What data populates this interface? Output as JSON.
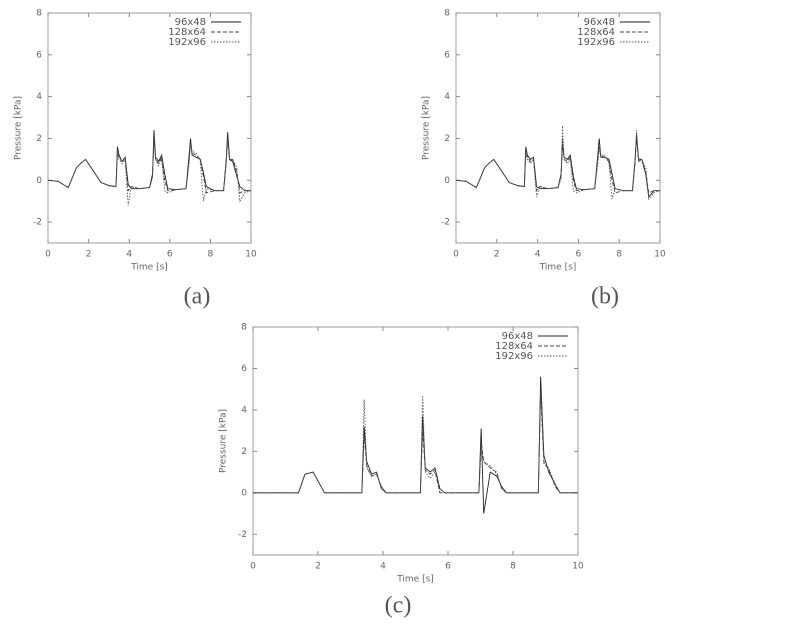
{
  "chart_data": [
    {
      "type": "line",
      "caption": "(a)",
      "x_label": "Time [s]",
      "y_label": "Pressure [kPa]",
      "x": [
        0,
        0.5,
        1.0,
        1.4,
        1.6,
        1.85,
        2.2,
        2.6,
        3.0,
        3.35,
        3.42,
        3.5,
        3.65,
        3.8,
        3.95,
        4.1,
        4.5,
        5.0,
        5.15,
        5.22,
        5.3,
        5.45,
        5.6,
        5.75,
        5.9,
        6.3,
        6.8,
        6.95,
        7.02,
        7.1,
        7.3,
        7.5,
        7.65,
        7.8,
        8.2,
        8.65,
        8.78,
        8.85,
        8.95,
        9.1,
        9.3,
        9.45,
        9.7,
        10
      ],
      "series": [
        {
          "name": "96x48",
          "color": "#222222",
          "dash": "none",
          "values": [
            0,
            -0.05,
            -0.35,
            0.6,
            0.8,
            1.0,
            0.5,
            -0.1,
            -0.25,
            -0.3,
            1.6,
            1.2,
            0.9,
            1.1,
            -0.2,
            -0.4,
            -0.4,
            -0.35,
            0.3,
            2.4,
            1.1,
            0.9,
            1.2,
            0.3,
            -0.4,
            -0.45,
            -0.4,
            1.2,
            2.0,
            1.2,
            1.1,
            1.0,
            0.4,
            -0.3,
            -0.5,
            -0.5,
            1.0,
            2.3,
            1.0,
            0.9,
            0.2,
            -0.3,
            -0.5,
            -0.5
          ]
        },
        {
          "name": "128x64",
          "color": "#444444",
          "dash": "4,2",
          "values": [
            0,
            -0.05,
            -0.35,
            0.6,
            0.8,
            1.0,
            0.5,
            -0.1,
            -0.25,
            -0.3,
            1.4,
            1.1,
            0.9,
            1.0,
            -0.5,
            -0.3,
            -0.4,
            -0.35,
            0.2,
            2.1,
            1.0,
            0.8,
            1.1,
            0.0,
            -0.5,
            -0.45,
            -0.4,
            1.0,
            1.8,
            1.3,
            1.2,
            1.0,
            0.2,
            -0.6,
            -0.5,
            -0.5,
            0.9,
            2.0,
            0.9,
            1.0,
            0.4,
            -0.6,
            -0.5,
            -0.5
          ]
        },
        {
          "name": "192x96",
          "color": "#555555",
          "dash": "1.5,1.5",
          "values": [
            0,
            -0.05,
            -0.35,
            0.6,
            0.8,
            1.0,
            0.5,
            -0.1,
            -0.25,
            -0.3,
            1.3,
            1.0,
            0.8,
            1.0,
            -1.2,
            -0.3,
            -0.4,
            -0.35,
            0.1,
            1.9,
            1.0,
            0.7,
            1.0,
            -0.5,
            -0.6,
            -0.45,
            -0.4,
            0.8,
            1.7,
            1.4,
            1.3,
            0.9,
            -1.0,
            -0.4,
            -0.5,
            -0.5,
            0.8,
            1.9,
            1.0,
            1.0,
            0.6,
            -1.0,
            -0.6,
            -0.5
          ]
        }
      ],
      "xlim": [
        0,
        10
      ],
      "xticks": [
        0,
        2,
        4,
        6,
        8,
        10
      ],
      "ylim": [
        -3,
        8
      ],
      "yticks": [
        -2,
        0,
        2,
        4,
        6,
        8
      ],
      "legend": "top-right"
    },
    {
      "type": "line",
      "caption": "(b)",
      "x_label": "Time [s]",
      "y_label": "Pressure [kPa]",
      "x": [
        0,
        0.5,
        1.0,
        1.4,
        1.6,
        1.85,
        2.2,
        2.6,
        3.0,
        3.35,
        3.42,
        3.5,
        3.65,
        3.8,
        3.95,
        4.1,
        4.5,
        5.0,
        5.15,
        5.22,
        5.3,
        5.45,
        5.6,
        5.75,
        5.9,
        6.3,
        6.8,
        6.95,
        7.02,
        7.1,
        7.3,
        7.5,
        7.65,
        7.8,
        8.2,
        8.65,
        8.78,
        8.85,
        8.95,
        9.1,
        9.3,
        9.45,
        9.7,
        10
      ],
      "series": [
        {
          "name": "96x48",
          "color": "#222222",
          "dash": "none",
          "values": [
            0,
            -0.05,
            -0.35,
            0.6,
            0.8,
            1.0,
            0.5,
            -0.1,
            -0.25,
            -0.3,
            1.6,
            1.2,
            1.0,
            1.1,
            -0.3,
            -0.4,
            -0.4,
            -0.35,
            0.3,
            1.7,
            1.1,
            1.0,
            1.2,
            0.2,
            -0.4,
            -0.45,
            -0.4,
            1.2,
            2.0,
            1.1,
            1.1,
            1.0,
            0.3,
            -0.4,
            -0.5,
            -0.5,
            1.0,
            2.2,
            1.0,
            1.0,
            0.3,
            -0.8,
            -0.5,
            -0.5
          ]
        },
        {
          "name": "128x64",
          "color": "#444444",
          "dash": "4,2",
          "values": [
            0,
            -0.05,
            -0.35,
            0.6,
            0.8,
            1.0,
            0.5,
            -0.1,
            -0.25,
            -0.3,
            1.4,
            1.1,
            0.9,
            1.0,
            -0.5,
            -0.3,
            -0.4,
            -0.35,
            0.2,
            2.0,
            1.0,
            0.9,
            1.1,
            0.0,
            -0.5,
            -0.45,
            -0.4,
            1.0,
            1.6,
            1.2,
            1.1,
            0.9,
            0.0,
            -0.6,
            -0.5,
            -0.5,
            0.9,
            2.0,
            0.9,
            1.0,
            0.4,
            -0.6,
            -0.5,
            -0.5
          ]
        },
        {
          "name": "192x96",
          "color": "#555555",
          "dash": "1.5,1.5",
          "values": [
            0,
            -0.05,
            -0.35,
            0.6,
            0.8,
            1.0,
            0.5,
            -0.1,
            -0.25,
            -0.3,
            1.2,
            1.0,
            0.8,
            1.0,
            -0.8,
            -0.3,
            -0.4,
            -0.35,
            0.1,
            2.6,
            1.0,
            0.8,
            1.0,
            -0.5,
            -0.6,
            -0.45,
            -0.4,
            0.8,
            1.5,
            1.2,
            1.2,
            0.8,
            -0.9,
            -0.4,
            -0.5,
            -0.5,
            0.8,
            2.4,
            0.9,
            1.0,
            0.6,
            -0.9,
            -0.6,
            -0.5
          ]
        }
      ],
      "xlim": [
        0,
        10
      ],
      "xticks": [
        0,
        2,
        4,
        6,
        8,
        10
      ],
      "ylim": [
        -3,
        8
      ],
      "yticks": [
        -2,
        0,
        2,
        4,
        6,
        8
      ],
      "legend": "top-right"
    },
    {
      "type": "line",
      "caption": "(c)",
      "x_label": "Time [s]",
      "y_label": "Pressure [kPa]",
      "x": [
        0,
        0.5,
        1.0,
        1.4,
        1.6,
        1.85,
        2.2,
        2.6,
        3.0,
        3.35,
        3.42,
        3.5,
        3.65,
        3.8,
        3.95,
        4.1,
        4.5,
        5.0,
        5.15,
        5.22,
        5.3,
        5.45,
        5.6,
        5.75,
        5.9,
        6.3,
        6.8,
        6.95,
        7.02,
        7.1,
        7.3,
        7.5,
        7.65,
        7.8,
        8.2,
        8.65,
        8.78,
        8.85,
        8.95,
        9.1,
        9.3,
        9.45,
        9.7,
        10
      ],
      "series": [
        {
          "name": "96x48",
          "color": "#222222",
          "dash": "none",
          "values": [
            0,
            0,
            0,
            0,
            0.9,
            1.0,
            0,
            0,
            0,
            0,
            3.2,
            1.5,
            0.9,
            1.0,
            0.2,
            0,
            0,
            0,
            0,
            3.7,
            1.2,
            1.0,
            1.2,
            0.2,
            0,
            0,
            0,
            0,
            3.1,
            -1.0,
            1.0,
            0.8,
            0.3,
            0,
            0,
            0,
            0,
            5.6,
            1.8,
            1.0,
            0.4,
            0,
            0,
            0
          ]
        },
        {
          "name": "128x64",
          "color": "#444444",
          "dash": "4,2",
          "values": [
            0,
            0,
            0,
            0,
            0.9,
            1.0,
            0,
            0,
            0,
            0,
            2.8,
            1.3,
            0.8,
            0.9,
            0.3,
            0,
            0,
            0,
            0,
            3.0,
            1.1,
            0.9,
            1.1,
            0,
            0,
            0,
            0,
            0,
            2.5,
            1.5,
            1.2,
            1.0,
            0.2,
            0,
            0,
            0,
            0,
            5.0,
            1.5,
            1.1,
            0.3,
            0,
            0,
            0
          ]
        },
        {
          "name": "192x96",
          "color": "#555555",
          "dash": "1.5,1.5",
          "values": [
            0,
            0,
            0,
            0,
            0.9,
            1.0,
            0,
            0,
            0,
            0,
            4.5,
            1.2,
            0.8,
            0.9,
            0.3,
            0,
            0,
            0,
            0,
            4.7,
            1.0,
            0.7,
            1.0,
            0,
            0,
            0,
            0,
            0,
            2.2,
            1.5,
            1.3,
            0.9,
            0.2,
            0,
            0,
            0,
            0,
            4.8,
            1.4,
            1.2,
            0.4,
            0,
            0,
            0
          ]
        }
      ],
      "xlim": [
        0,
        10
      ],
      "xticks": [
        0,
        2,
        4,
        6,
        8,
        10
      ],
      "ylim": [
        -3,
        8
      ],
      "yticks": [
        -2,
        0,
        2,
        4,
        6,
        8
      ],
      "legend": "top-right"
    }
  ]
}
